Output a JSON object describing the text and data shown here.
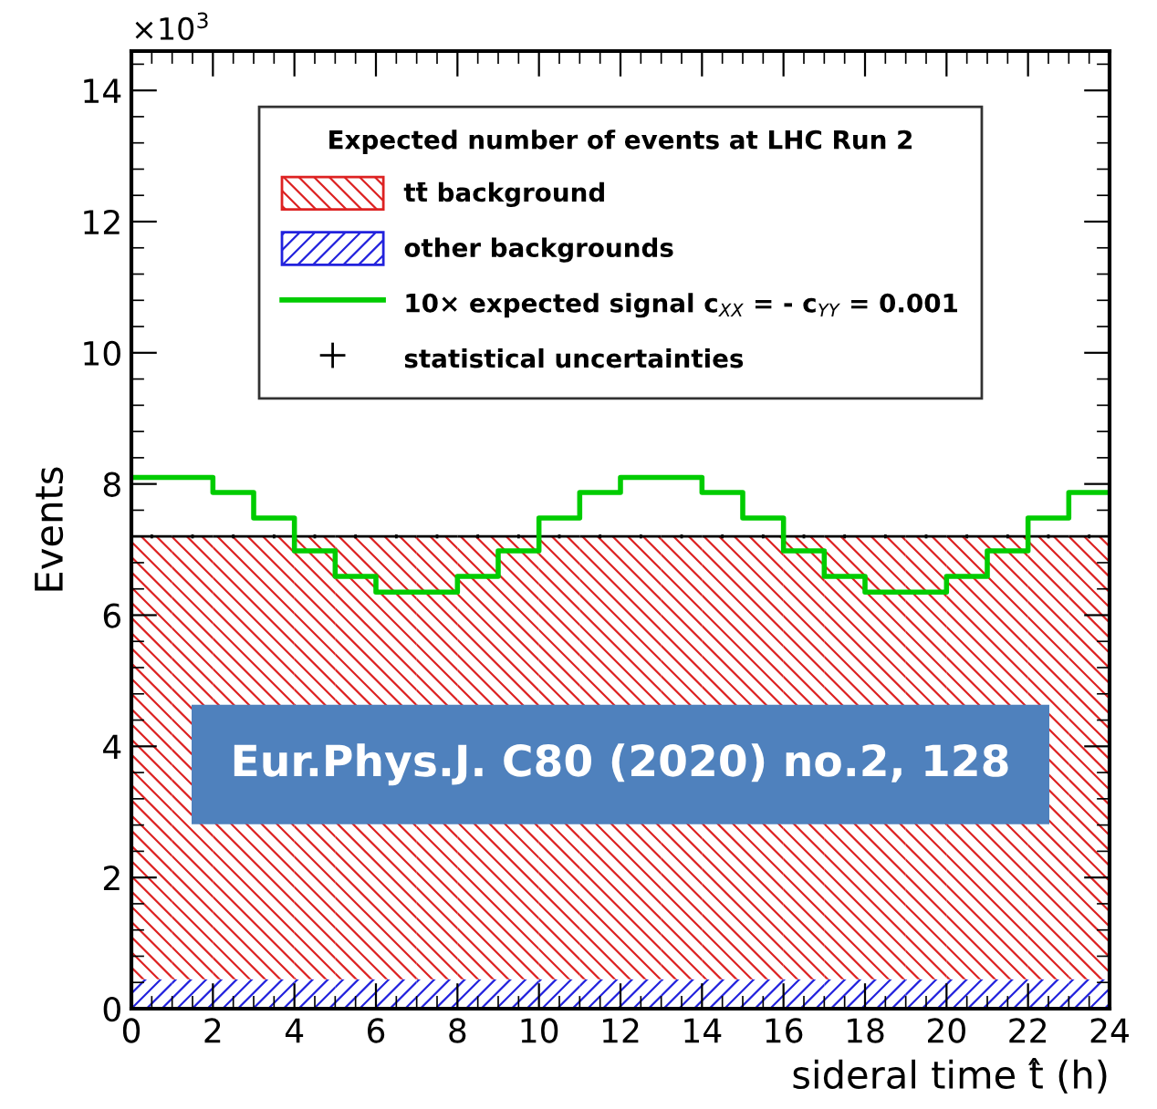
{
  "chart_data": {
    "type": "bar",
    "stacked": true,
    "xlabel": "sideral time t̂ (h)",
    "ylabel": "Events",
    "legend_title": "Expected number of events at LHC Run 2",
    "legend": "top",
    "x": [
      0.5,
      1.5,
      2.5,
      3.5,
      4.5,
      5.5,
      6.5,
      7.5,
      8.5,
      9.5,
      10.5,
      11.5,
      12.5,
      13.5,
      14.5,
      15.5,
      16.5,
      17.5,
      18.5,
      19.5,
      20.5,
      21.5,
      22.5,
      23.5
    ],
    "series": [
      {
        "name": "other backgrounds",
        "color": "#2222dd",
        "values": [
          0.45,
          0.45,
          0.45,
          0.45,
          0.45,
          0.45,
          0.45,
          0.45,
          0.45,
          0.45,
          0.45,
          0.45,
          0.45,
          0.45,
          0.45,
          0.45,
          0.45,
          0.45,
          0.45,
          0.45,
          0.45,
          0.45,
          0.45,
          0.45
        ]
      },
      {
        "name": "tt̄ background",
        "color": "#dd2222",
        "values": [
          6.75,
          6.75,
          6.75,
          6.75,
          6.75,
          6.75,
          6.75,
          6.75,
          6.75,
          6.75,
          6.75,
          6.75,
          6.75,
          6.75,
          6.75,
          6.75,
          6.75,
          6.75,
          6.75,
          6.75,
          6.75,
          6.75,
          6.75,
          6.75
        ],
        "errors": [
          0.03,
          0.03,
          0.03,
          0.03,
          0.03,
          0.03,
          0.03,
          0.03,
          0.03,
          0.03,
          0.03,
          0.03,
          0.03,
          0.03,
          0.03,
          0.03,
          0.03,
          0.03,
          0.03,
          0.03,
          0.03,
          0.03,
          0.03,
          0.03
        ]
      },
      {
        "name": "10× expected signal c$_{XX}$ = - c$_{YY}$ = 0.001",
        "type": "step",
        "color": "#00cc00",
        "x": [
          0,
          1,
          2,
          3,
          4,
          5,
          6,
          7,
          8,
          9,
          10,
          11,
          12,
          13,
          14,
          15,
          16,
          17,
          18,
          19,
          20,
          21,
          22,
          23,
          24
        ],
        "values": [
          8.1,
          8.1,
          7.87,
          7.48,
          6.98,
          6.59,
          6.35,
          6.35,
          6.59,
          6.98,
          7.48,
          7.87,
          8.1,
          8.1,
          7.87,
          7.48,
          6.98,
          6.59,
          6.35,
          6.35,
          6.59,
          6.98,
          7.48,
          7.87,
          7.87
        ]
      }
    ],
    "xlim": [
      0,
      24
    ],
    "xticks": [
      0,
      2,
      4,
      6,
      8,
      10,
      12,
      14,
      16,
      18,
      20,
      22,
      24
    ],
    "ylim": [
      0,
      14.6
    ],
    "yticks": [
      0,
      2,
      4,
      6,
      8,
      10,
      12,
      14
    ],
    "annotations": [
      "×10$^{3}$",
      "Eur.Phys.J. C80 (2020) no.2, 128",
      "statistical uncertainties"
    ]
  }
}
